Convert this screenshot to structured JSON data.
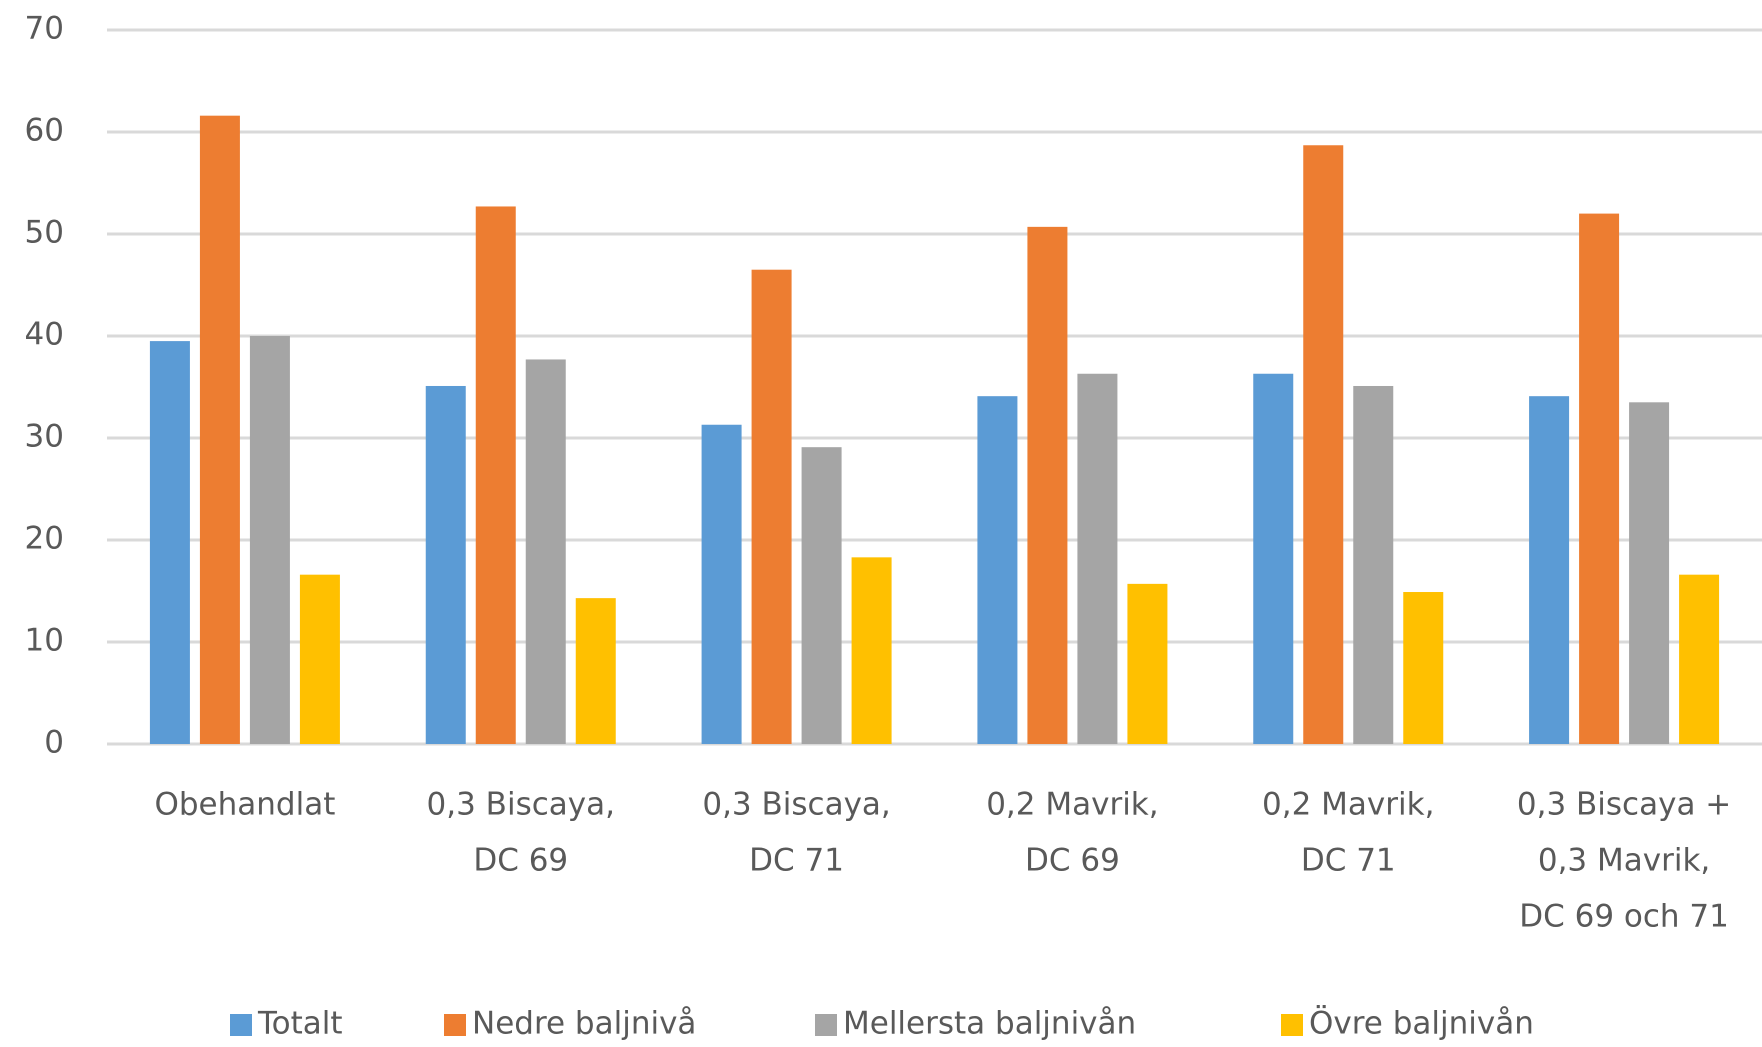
{
  "chart_data": {
    "type": "bar",
    "categories": [
      [
        "Obehandlat"
      ],
      [
        "0,3 Biscaya,",
        "DC 69"
      ],
      [
        "0,3 Biscaya,",
        "DC 71"
      ],
      [
        "0,2 Mavrik,",
        "DC 69"
      ],
      [
        "0,2 Mavrik,",
        "DC 71"
      ],
      [
        "0,3 Biscaya +",
        "0,3 Mavrik,",
        "DC 69 och 71"
      ]
    ],
    "series": [
      {
        "name": "Totalt",
        "color": "#5b9bd5",
        "values": [
          39.5,
          35.1,
          31.3,
          34.1,
          36.3,
          34.1
        ]
      },
      {
        "name": "Nedre baljnivå",
        "color": "#ed7d31",
        "values": [
          61.6,
          52.7,
          46.5,
          50.7,
          58.7,
          52.0
        ]
      },
      {
        "name": "Mellersta baljnivån",
        "color": "#a5a5a5",
        "values": [
          40.0,
          37.7,
          29.1,
          36.3,
          35.1,
          33.5
        ]
      },
      {
        "name": "Övre baljnivån",
        "color": "#ffc000",
        "values": [
          16.6,
          14.3,
          18.3,
          15.7,
          14.9,
          16.6
        ]
      }
    ],
    "ylim": [
      0,
      70
    ],
    "yticks": [
      0,
      10,
      20,
      30,
      40,
      50,
      60,
      70
    ],
    "grid": true,
    "legend": "bottom"
  }
}
